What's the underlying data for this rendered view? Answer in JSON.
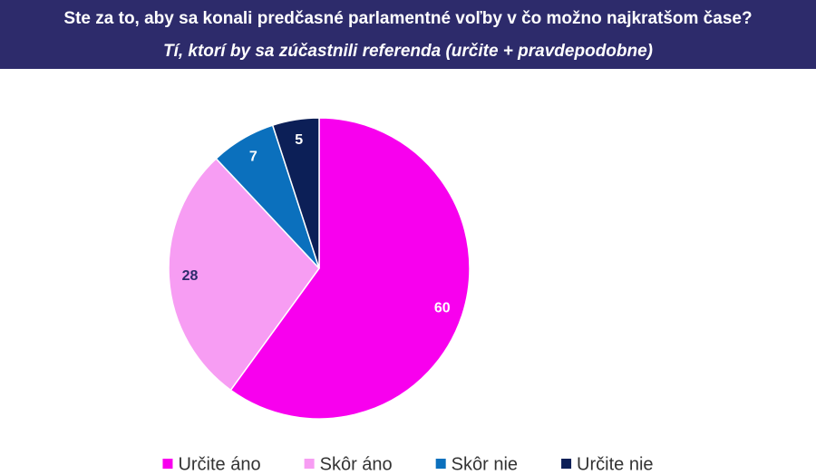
{
  "chart_data": {
    "type": "pie",
    "title": "Ste za to, aby sa konali predčasné parlamentné voľby v čo možno najkratšom čase?",
    "subtitle": "Tí, ktorí by sa zúčastnili referenda (určite + pravdepodobne)",
    "categories": [
      "Určite áno",
      "Skôr áno",
      "Skôr nie",
      "Určite nie"
    ],
    "values": [
      60,
      28,
      7,
      5
    ],
    "colors": [
      "#f800ee",
      "#f79df3",
      "#0b70bd",
      "#0c1f57"
    ]
  }
}
